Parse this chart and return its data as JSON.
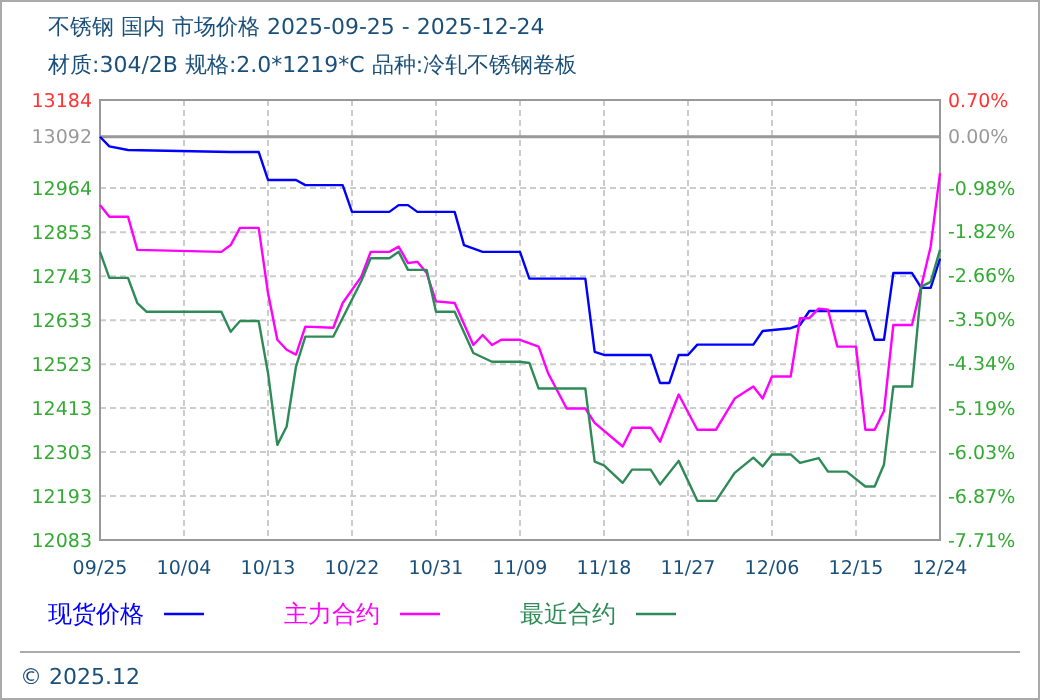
{
  "chart_data": {
    "type": "line",
    "title": "不锈钢 国内 市场价格 2025-09-25 - 2025-12-24",
    "subtitle": "材质:304/2B 规格:2.0*1219*C 品种:冷轧不锈钢卷板",
    "annotations": [
      "© 2025.12"
    ],
    "ylim": [
      12083,
      13184
    ],
    "yticks": [
      13184,
      13092,
      12964,
      12853,
      12743,
      12633,
      12523,
      12413,
      12303,
      12193,
      12083
    ],
    "y2lim": [
      -7.71,
      0.7
    ],
    "y2ticks": [
      {
        "value": 0.7,
        "label": "0.70%"
      },
      {
        "value": 0.0,
        "label": "0.00%"
      },
      {
        "value": -0.98,
        "label": "-0.98%"
      },
      {
        "value": -1.82,
        "label": "-1.82%"
      },
      {
        "value": -2.66,
        "label": "-2.66%"
      },
      {
        "value": -3.5,
        "label": "-3.50%"
      },
      {
        "value": -4.34,
        "label": "-4.34%"
      },
      {
        "value": -5.19,
        "label": "-5.19%"
      },
      {
        "value": -6.03,
        "label": "-6.03%"
      },
      {
        "value": -6.87,
        "label": "-6.87%"
      },
      {
        "value": -7.71,
        "label": "-7.71%"
      }
    ],
    "xlim": [
      "2025-09-25",
      "2025-12-24"
    ],
    "xticks": [
      {
        "value": "2025-09-25",
        "label": "09/25"
      },
      {
        "value": "2025-10-04",
        "label": "10/04"
      },
      {
        "value": "2025-10-13",
        "label": "10/13"
      },
      {
        "value": "2025-10-22",
        "label": "10/22"
      },
      {
        "value": "2025-10-31",
        "label": "10/31"
      },
      {
        "value": "2025-11-09",
        "label": "11/09"
      },
      {
        "value": "2025-11-18",
        "label": "11/18"
      },
      {
        "value": "2025-11-27",
        "label": "11/27"
      },
      {
        "value": "2025-12-06",
        "label": "12/06"
      },
      {
        "value": "2025-12-15",
        "label": "12/15"
      },
      {
        "value": "2025-12-24",
        "label": "12/24"
      }
    ],
    "grid": true,
    "legend": "bottom",
    "marker": "none",
    "line_style": "solid",
    "ref_lines": [
      {
        "axis": "y",
        "value": 13092,
        "color": "#999999"
      }
    ],
    "series": [
      {
        "name": "现货价格",
        "color": "#0000ff",
        "x": [
          "2025-09-25",
          "2025-09-26",
          "2025-09-28",
          "2025-10-09",
          "2025-10-12",
          "2025-10-13",
          "2025-10-16",
          "2025-10-17",
          "2025-10-21",
          "2025-10-22",
          "2025-10-26",
          "2025-10-27",
          "2025-10-28",
          "2025-10-29",
          "2025-11-02",
          "2025-11-03",
          "2025-11-05",
          "2025-11-09",
          "2025-11-10",
          "2025-11-16",
          "2025-11-17",
          "2025-11-18",
          "2025-11-23",
          "2025-11-24",
          "2025-11-25",
          "2025-11-26",
          "2025-11-27",
          "2025-11-28",
          "2025-12-04",
          "2025-12-05",
          "2025-12-08",
          "2025-12-09",
          "2025-12-10",
          "2025-12-16",
          "2025-12-17",
          "2025-12-18",
          "2025-12-19",
          "2025-12-21",
          "2025-12-22",
          "2025-12-23",
          "2025-12-24"
        ],
        "values": [
          13092,
          13068,
          13059,
          13054,
          13054,
          12984,
          12984,
          12971,
          12971,
          12904,
          12904,
          12921,
          12921,
          12904,
          12904,
          12821,
          12804,
          12804,
          12737,
          12737,
          12554,
          12546,
          12546,
          12476,
          12476,
          12546,
          12546,
          12572,
          12572,
          12606,
          12613,
          12621,
          12656,
          12656,
          12584,
          12584,
          12751,
          12751,
          12714,
          12714,
          12787
        ]
      },
      {
        "name": "主力合约",
        "color": "#ff00ff",
        "x": [
          "2025-09-25",
          "2025-09-26",
          "2025-09-28",
          "2025-09-29",
          "2025-10-08",
          "2025-10-09",
          "2025-10-10",
          "2025-10-12",
          "2025-10-13",
          "2025-10-14",
          "2025-10-15",
          "2025-10-16",
          "2025-10-17",
          "2025-10-20",
          "2025-10-21",
          "2025-10-23",
          "2025-10-24",
          "2025-10-26",
          "2025-10-27",
          "2025-10-28",
          "2025-10-29",
          "2025-10-30",
          "2025-10-31",
          "2025-11-02",
          "2025-11-04",
          "2025-11-05",
          "2025-11-06",
          "2025-11-07",
          "2025-11-09",
          "2025-11-11",
          "2025-11-12",
          "2025-11-14",
          "2025-11-16",
          "2025-11-17",
          "2025-11-20",
          "2025-11-21",
          "2025-11-23",
          "2025-11-24",
          "2025-11-26",
          "2025-11-28",
          "2025-11-30",
          "2025-12-02",
          "2025-12-04",
          "2025-12-05",
          "2025-12-06",
          "2025-12-08",
          "2025-12-09",
          "2025-12-10",
          "2025-12-11",
          "2025-12-12",
          "2025-12-13",
          "2025-12-15",
          "2025-12-16",
          "2025-12-17",
          "2025-12-18",
          "2025-12-19",
          "2025-12-21",
          "2025-12-22",
          "2025-12-23",
          "2025-12-24"
        ],
        "values": [
          12921,
          12892,
          12892,
          12809,
          12804,
          12821,
          12864,
          12864,
          12701,
          12584,
          12559,
          12547,
          12617,
          12614,
          12676,
          12742,
          12804,
          12804,
          12817,
          12776,
          12779,
          12751,
          12680,
          12676,
          12571,
          12596,
          12571,
          12584,
          12584,
          12567,
          12501,
          12412,
          12412,
          12376,
          12317,
          12364,
          12364,
          12329,
          12447,
          12359,
          12359,
          12437,
          12467,
          12437,
          12492,
          12492,
          12638,
          12638,
          12662,
          12659,
          12567,
          12567,
          12359,
          12359,
          12406,
          12621,
          12621,
          12719,
          12817,
          13001
        ]
      },
      {
        "name": "最近合约",
        "color": "#2e8b57",
        "x": [
          "2025-09-25",
          "2025-09-26",
          "2025-09-28",
          "2025-09-29",
          "2025-09-30",
          "2025-10-08",
          "2025-10-09",
          "2025-10-10",
          "2025-10-12",
          "2025-10-13",
          "2025-10-14",
          "2025-10-15",
          "2025-10-16",
          "2025-10-17",
          "2025-10-20",
          "2025-10-23",
          "2025-10-24",
          "2025-10-26",
          "2025-10-27",
          "2025-10-28",
          "2025-10-30",
          "2025-10-31",
          "2025-11-02",
          "2025-11-04",
          "2025-11-06",
          "2025-11-09",
          "2025-11-10",
          "2025-11-11",
          "2025-11-16",
          "2025-11-17",
          "2025-11-18",
          "2025-11-20",
          "2025-11-21",
          "2025-11-23",
          "2025-11-24",
          "2025-11-26",
          "2025-11-28",
          "2025-11-30",
          "2025-12-02",
          "2025-12-04",
          "2025-12-05",
          "2025-12-06",
          "2025-12-08",
          "2025-12-09",
          "2025-12-11",
          "2025-12-12",
          "2025-12-14",
          "2025-12-16",
          "2025-12-17",
          "2025-12-18",
          "2025-12-19",
          "2025-12-21",
          "2025-12-22",
          "2025-12-23",
          "2025-12-24"
        ],
        "values": [
          12804,
          12739,
          12739,
          12676,
          12654,
          12654,
          12604,
          12631,
          12631,
          12501,
          12321,
          12367,
          12517,
          12592,
          12592,
          12731,
          12788,
          12788,
          12804,
          12759,
          12759,
          12654,
          12654,
          12551,
          12529,
          12529,
          12526,
          12462,
          12462,
          12279,
          12270,
          12226,
          12259,
          12259,
          12222,
          12281,
          12181,
          12181,
          12251,
          12289,
          12267,
          12297,
          12297,
          12276,
          12288,
          12254,
          12254,
          12217,
          12217,
          12272,
          12467,
          12467,
          12717,
          12729,
          12809
        ]
      }
    ]
  }
}
